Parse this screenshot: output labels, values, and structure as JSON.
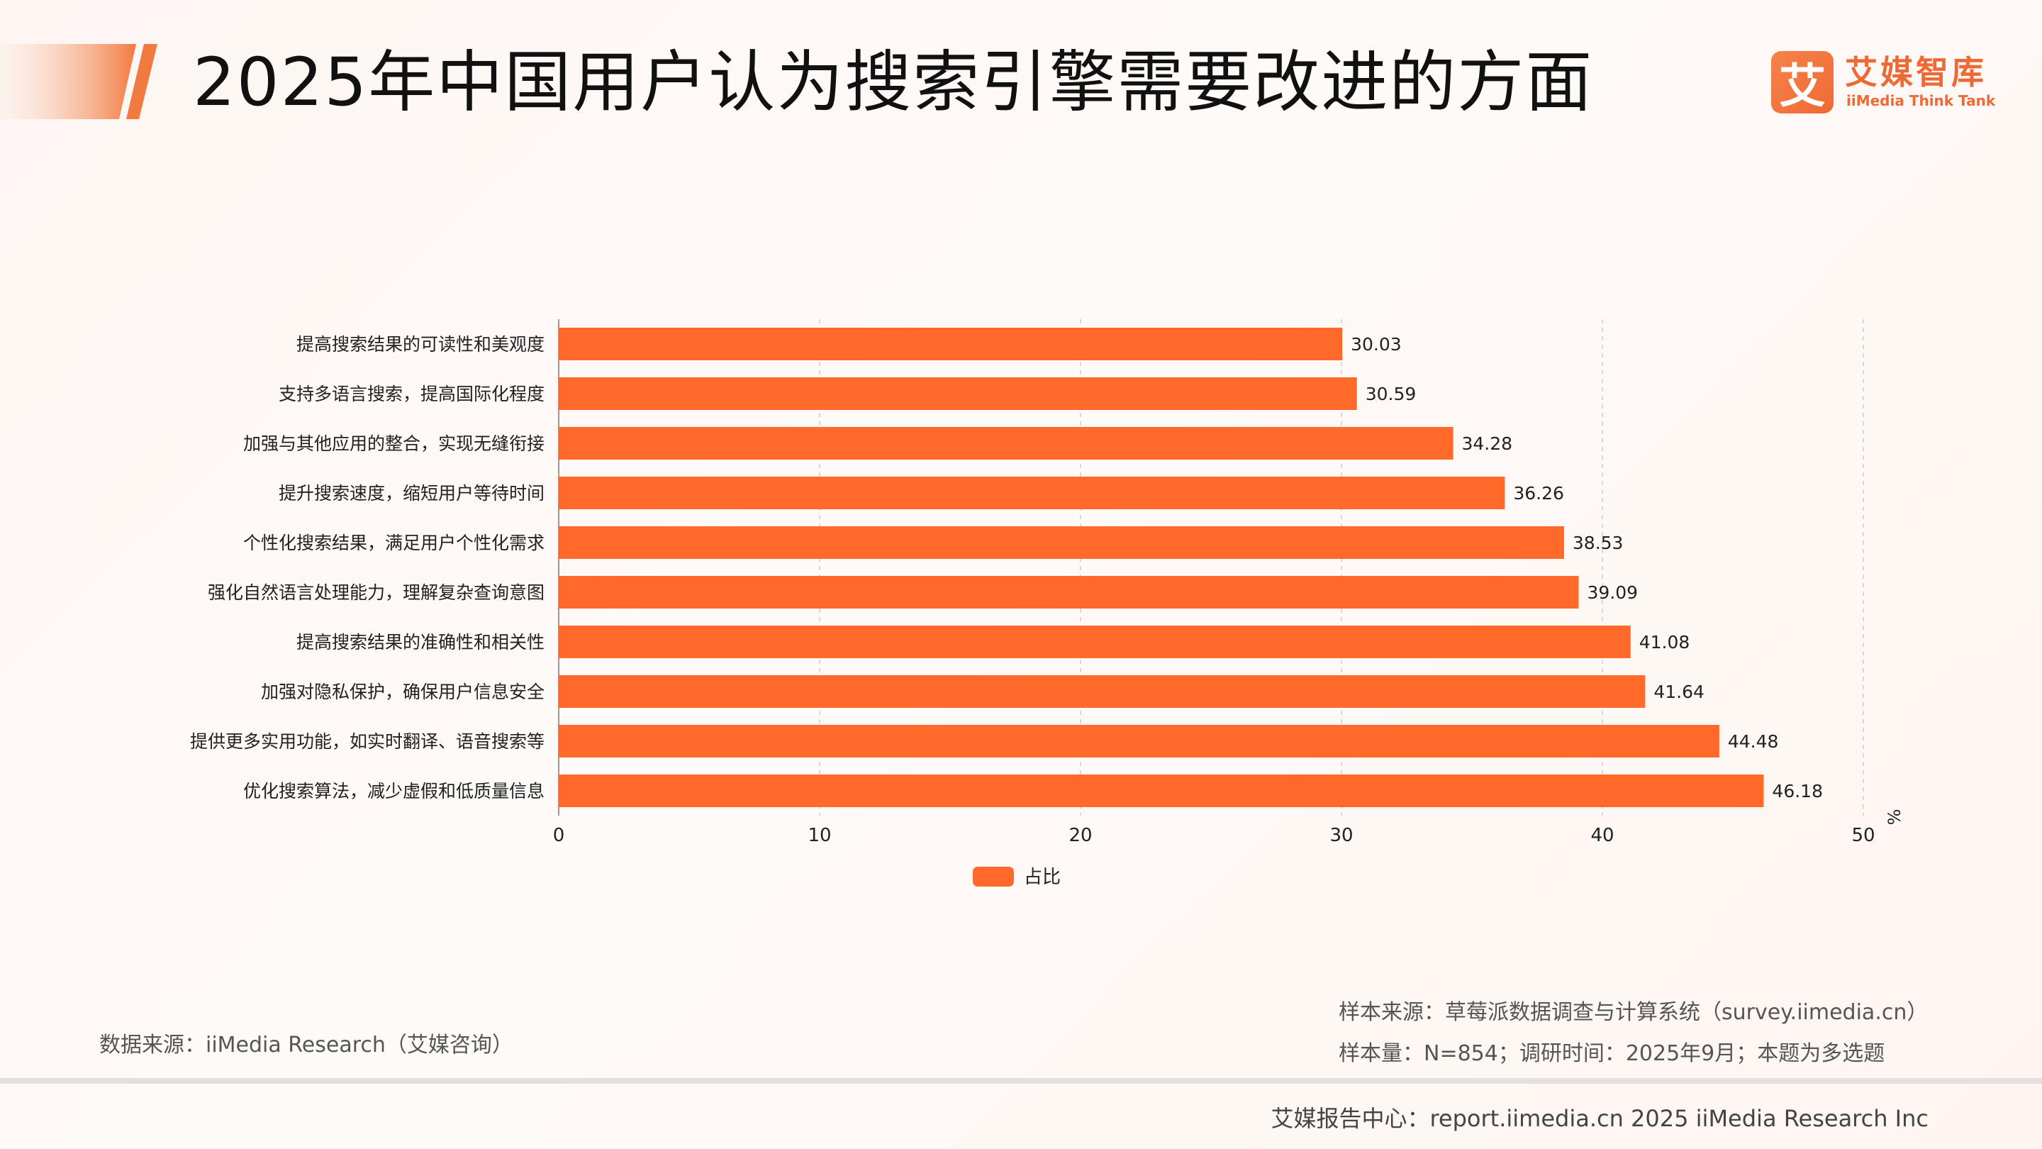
{
  "header": {
    "title": "2025年中国用户认为搜索引擎需要改进的方面"
  },
  "logo": {
    "mark": "艾",
    "name_cn": "艾媒智库",
    "name_en": "iiMedia Think Tank"
  },
  "colors": {
    "bar": "#ff6a2b",
    "accent": "#ee6a35",
    "grid": "#d8d8d8"
  },
  "chart_data": {
    "type": "bar",
    "orientation": "horizontal",
    "categories": [
      "提高搜索结果的可读性和美观度",
      "支持多语言搜索，提高国际化程度",
      "加强与其他应用的整合，实现无缝衔接",
      "提升搜索速度，缩短用户等待时间",
      "个性化搜索结果，满足用户个性化需求",
      "强化自然语言处理能力，理解复杂查询意图",
      "提高搜索结果的准确性和相关性",
      "加强对隐私保护，确保用户信息安全",
      "提供更多实用功能，如实时翻译、语音搜索等",
      "优化搜索算法，减少虚假和低质量信息"
    ],
    "series": [
      {
        "name": "占比",
        "values": [
          30.03,
          30.59,
          34.28,
          36.26,
          38.53,
          39.09,
          41.08,
          41.64,
          44.48,
          46.18
        ],
        "labels": [
          "30.03",
          "30.59",
          "34.28",
          "36.26",
          "38.53",
          "39.09",
          "41.08",
          "41.64",
          "44.48",
          "46.18"
        ]
      }
    ],
    "xlim": [
      0,
      50
    ],
    "xticks": [
      "0",
      "10",
      "20",
      "30",
      "40",
      "50"
    ],
    "unit": "%",
    "grid": "vertical dashed",
    "legend": "bottom-center"
  },
  "footer": {
    "source": "数据来源：iiMedia Research（艾媒咨询）",
    "sample_source": "样本来源：草莓派数据调查与计算系统（survey.iimedia.cn）",
    "sample_size": "样本量：N=854；调研时间：2025年9月；本题为多选题",
    "report_center": "艾媒报告中心：report.iimedia.cn   2025 iiMedia Research Inc"
  }
}
